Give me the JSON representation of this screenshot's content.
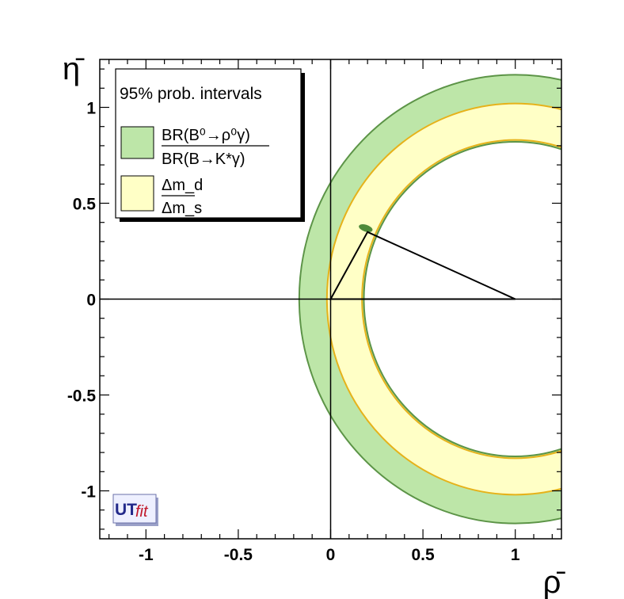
{
  "chart_data": {
    "type": "contour",
    "title": "",
    "xlabel": "ρ̄",
    "ylabel": "η̄",
    "xlim": [
      -1.25,
      1.25
    ],
    "ylim": [
      -1.25,
      1.25
    ],
    "xticks": [
      {
        "value": -1,
        "label": "-1"
      },
      {
        "value": -0.5,
        "label": "-0.5"
      },
      {
        "value": 0,
        "label": "0"
      },
      {
        "value": 0.5,
        "label": "0.5"
      },
      {
        "value": 1,
        "label": "1"
      }
    ],
    "yticks": [
      {
        "value": 1,
        "label": "1"
      },
      {
        "value": 0.5,
        "label": "0.5"
      },
      {
        "value": 0,
        "label": "0"
      },
      {
        "value": -0.5,
        "label": "-0.5"
      },
      {
        "value": -1,
        "label": "-1"
      }
    ],
    "legend": {
      "title": "95% prob. intervals",
      "placement": "top-left",
      "entries": [
        {
          "name": "BR(B⁰→ρ⁰γ) / BR(B→K*γ)",
          "numerator": "BR(B⁰→ρ⁰γ)",
          "denominator": "BR(B→K*γ)",
          "color": "#bde6a8"
        },
        {
          "name": "Δm_d / Δm_s",
          "numerator": "Δm_d",
          "denominator": "Δm_s",
          "color": "#ffffc6"
        }
      ]
    },
    "regions": [
      {
        "name": "BR(B⁰→ρ⁰γ)/BR(B→K*γ)",
        "shape": "annulus",
        "center": [
          1,
          0
        ],
        "r_inner": 0.82,
        "r_outer": 1.17,
        "fill": "#bde6a8",
        "stroke": "#5c9447"
      },
      {
        "name": "Δm_d/Δm_s",
        "shape": "annulus",
        "center": [
          1,
          0
        ],
        "r_inner": 0.83,
        "r_outer": 1.02,
        "fill": "#ffffc6",
        "stroke": "#e6b21a"
      }
    ],
    "apex": {
      "rho": 0.19,
      "eta": 0.37,
      "rho_radius": 0.07,
      "eta_radius": 0.04,
      "color": "#4e8a3a"
    },
    "triangle": [
      [
        0,
        0
      ],
      [
        1,
        0
      ],
      [
        0.2,
        0.35
      ]
    ],
    "logo": {
      "text_primary": "UT",
      "text_secondary": "fit"
    }
  }
}
